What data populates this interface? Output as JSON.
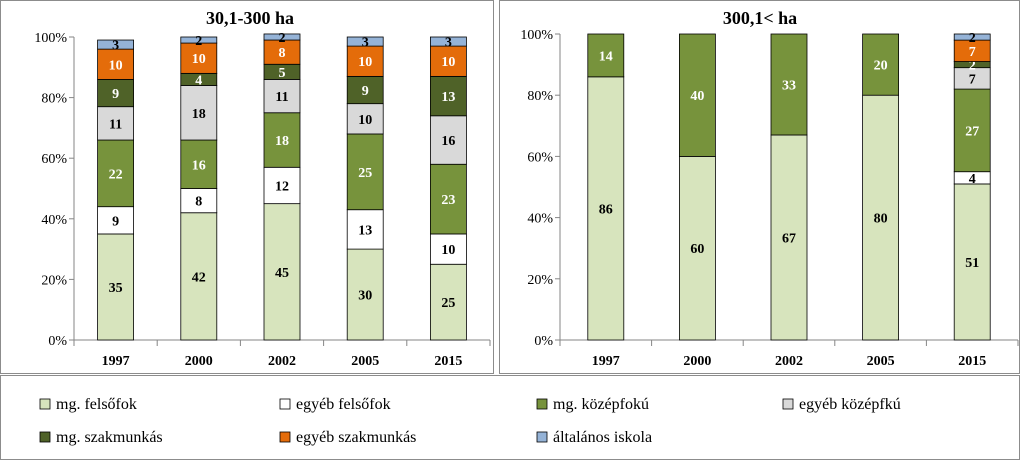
{
  "chart_data": [
    {
      "type": "bar",
      "stacked": true,
      "title": "30,1-300 ha",
      "categories": [
        "1997",
        "2000",
        "2002",
        "2005",
        "2015"
      ],
      "y_ticks": [
        "0%",
        "20%",
        "40%",
        "60%",
        "80%",
        "100%"
      ],
      "ylim": [
        0,
        100
      ],
      "series": [
        {
          "name": "mg. felsőfok",
          "values": [
            35,
            42,
            45,
            30,
            25
          ],
          "labels": [
            "35",
            "42",
            "45",
            "30",
            "25"
          ]
        },
        {
          "name": "egyéb felsőfok",
          "values": [
            9,
            8,
            12,
            13,
            10
          ],
          "labels": [
            "9",
            "8",
            "12",
            "13",
            "10"
          ]
        },
        {
          "name": "mg. középfokú",
          "values": [
            22,
            16,
            18,
            25,
            23
          ],
          "labels": [
            "22",
            "16",
            "18",
            "25",
            "23"
          ]
        },
        {
          "name": "egyéb középfkú",
          "values": [
            11,
            18,
            11,
            10,
            16
          ],
          "labels": [
            "11",
            "18",
            "11",
            "10",
            "16"
          ]
        },
        {
          "name": "mg. szakmunkás",
          "values": [
            9,
            4,
            5,
            9,
            13
          ],
          "labels": [
            "9",
            "4",
            "5",
            "9",
            "13"
          ]
        },
        {
          "name": "egyéb  szakmunkás",
          "values": [
            10,
            10,
            8,
            10,
            10
          ],
          "labels": [
            "10",
            "10",
            "8",
            "10",
            "10"
          ]
        },
        {
          "name": "általános iskola",
          "values": [
            3,
            2,
            2,
            3,
            3
          ],
          "labels": [
            "3",
            "2",
            "2",
            "3",
            "3"
          ]
        }
      ]
    },
    {
      "type": "bar",
      "stacked": true,
      "title": "300,1< ha",
      "categories": [
        "1997",
        "2000",
        "2002",
        "2005",
        "2015"
      ],
      "y_ticks": [
        "0%",
        "20%",
        "40%",
        "60%",
        "80%",
        "100%"
      ],
      "ylim": [
        0,
        100
      ],
      "series": [
        {
          "name": "mg. felsőfok",
          "values": [
            86,
            60,
            67,
            80,
            51
          ],
          "labels": [
            "86",
            "60",
            "67",
            "80",
            "51"
          ]
        },
        {
          "name": "egyéb felsőfok",
          "values": [
            0,
            0,
            0,
            0,
            4
          ],
          "labels": [
            "",
            "",
            "",
            "",
            "4"
          ]
        },
        {
          "name": "mg. középfokú",
          "values": [
            14,
            40,
            33,
            20,
            27
          ],
          "labels": [
            "14",
            "40",
            "33",
            "20",
            "27"
          ]
        },
        {
          "name": "egyéb középfkú",
          "values": [
            0,
            0,
            0,
            0,
            7
          ],
          "labels": [
            "",
            "",
            "",
            "",
            "7"
          ]
        },
        {
          "name": "mg. szakmunkás",
          "values": [
            0,
            0,
            0,
            0,
            2
          ],
          "labels": [
            "",
            "",
            "",
            "",
            "2"
          ]
        },
        {
          "name": "egyéb  szakmunkás",
          "values": [
            0,
            0,
            0,
            0,
            7
          ],
          "labels": [
            "",
            "",
            "",
            "",
            "7"
          ]
        },
        {
          "name": "általános iskola",
          "values": [
            0,
            0,
            0,
            0,
            2
          ],
          "labels": [
            "",
            "",
            "",
            "",
            "2"
          ]
        }
      ]
    }
  ],
  "series_colors": [
    "#d7e4bd",
    "#ffffff",
    "#77933c",
    "#d9d9d9",
    "#4f6228",
    "#e46c0a",
    "#95b3d7"
  ],
  "series_label_colors": [
    "#000000",
    "#000000",
    "#ffffff",
    "#000000",
    "#ffffff",
    "#ffffff",
    "#000000"
  ],
  "legend": {
    "placement": "bottom",
    "items": [
      "mg. felsőfok",
      "egyéb felsőfok",
      "mg. középfokú",
      "egyéb középfkú",
      "mg. szakmunkás",
      "egyéb  szakmunkás",
      "általános iskola"
    ]
  }
}
